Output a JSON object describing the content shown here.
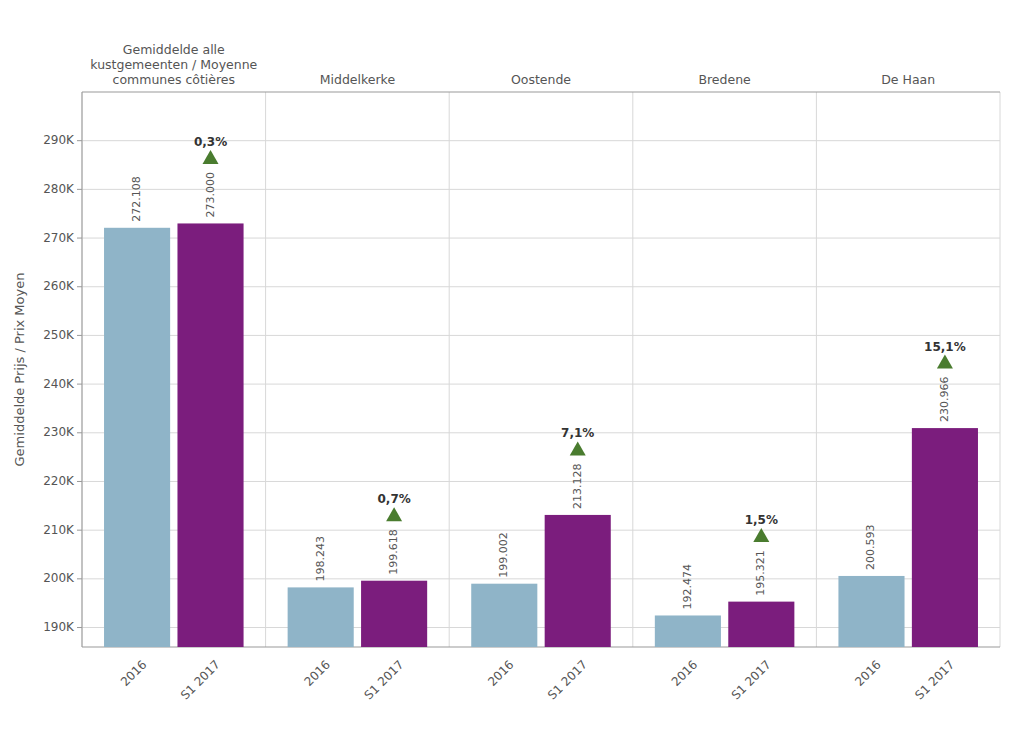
{
  "chart_data": {
    "type": "bar",
    "y_label": "Gemiddelde Prijs / Prix Moyen",
    "categories": [
      "Gemiddelde alle\nkustgemeenten / Moyenne\ncommunes côtières",
      "Middelkerke",
      "Oostende",
      "Bredene",
      "De Haan"
    ],
    "series": [
      {
        "name": "2016",
        "color": "#8fb4c8",
        "values": [
          272108,
          198243,
          199002,
          192474,
          200593
        ],
        "value_labels": [
          "272.108",
          "198.243",
          "199.002",
          "192.474",
          "200.593"
        ]
      },
      {
        "name": "S1 2017",
        "color": "#7b1d7d",
        "values": [
          273000,
          199618,
          213128,
          195321,
          230966
        ],
        "value_labels": [
          "273.000",
          "199.618",
          "213.128",
          "195.321",
          "230.966"
        ],
        "annotations": [
          {
            "text": "0,3%",
            "marker": "triangle-up",
            "color": "#4a7c2f"
          },
          {
            "text": "0,7%",
            "marker": "triangle-up",
            "color": "#4a7c2f"
          },
          {
            "text": "7,1%",
            "marker": "triangle-up",
            "color": "#4a7c2f"
          },
          {
            "text": "1,5%",
            "marker": "triangle-up",
            "color": "#4a7c2f"
          },
          {
            "text": "15,1%",
            "marker": "triangle-up",
            "color": "#4a7c2f"
          }
        ]
      }
    ],
    "ylim": [
      186000,
      300000
    ],
    "yticks": [
      {
        "value": 190000,
        "label": "190K"
      },
      {
        "value": 200000,
        "label": "200K"
      },
      {
        "value": 210000,
        "label": "210K"
      },
      {
        "value": 220000,
        "label": "220K"
      },
      {
        "value": 230000,
        "label": "230K"
      },
      {
        "value": 240000,
        "label": "240K"
      },
      {
        "value": 250000,
        "label": "250K"
      },
      {
        "value": 260000,
        "label": "260K"
      },
      {
        "value": 270000,
        "label": "270K"
      },
      {
        "value": 280000,
        "label": "280K"
      },
      {
        "value": 290000,
        "label": "290K"
      }
    ],
    "grid": true,
    "data_labels": true
  }
}
